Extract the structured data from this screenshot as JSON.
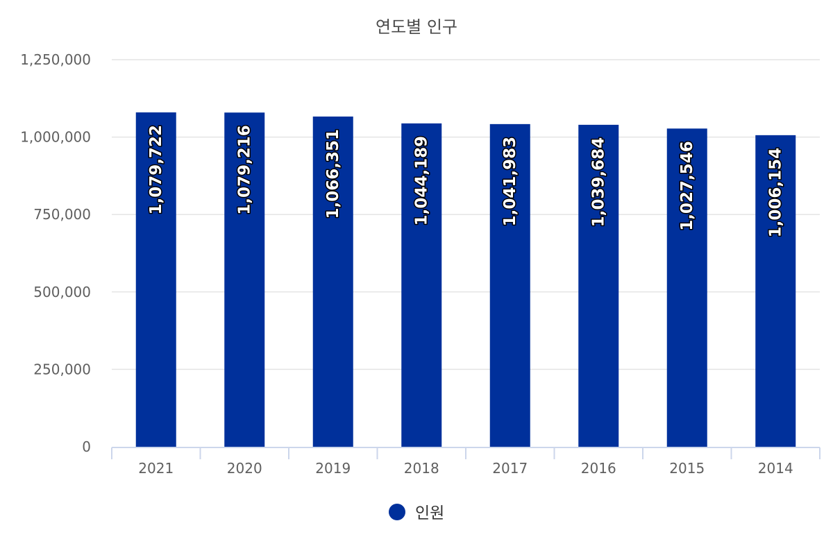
{
  "chart_data": {
    "type": "bar",
    "title": "연도별 인구",
    "xlabel": "",
    "ylabel": "",
    "categories": [
      "2021",
      "2020",
      "2019",
      "2018",
      "2017",
      "2016",
      "2015",
      "2014"
    ],
    "series": [
      {
        "name": "인원",
        "color": "#00309b",
        "values": [
          1079722,
          1079216,
          1066351,
          1044189,
          1041983,
          1039684,
          1027546,
          1006154
        ],
        "value_labels": [
          "1,079,722",
          "1,079,216",
          "1,066,351",
          "1,044,189",
          "1,041,983",
          "1,039,684",
          "1,027,546",
          "1,006,154"
        ]
      }
    ],
    "ylim": [
      0,
      1250000
    ],
    "y_ticks": [
      0,
      250000,
      500000,
      750000,
      1000000,
      1250000
    ],
    "y_tick_labels": [
      "0",
      "250,000",
      "500,000",
      "750,000",
      "1,000,000",
      "1,250,000"
    ],
    "grid": true,
    "data_labels": "inside-top-rotated",
    "legend": "bottom-center"
  }
}
